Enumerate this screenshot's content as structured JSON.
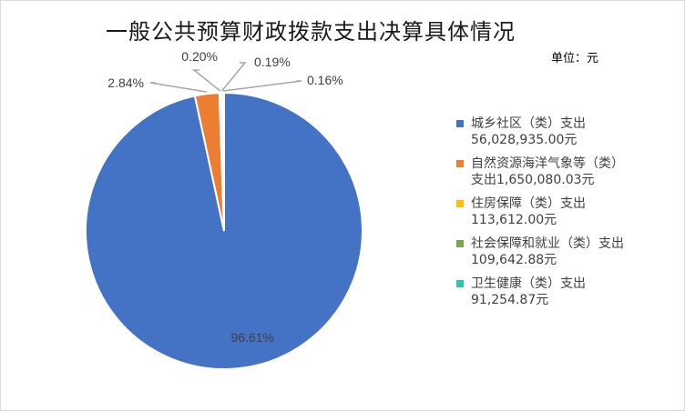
{
  "title": "一般公共预算财政拨款支出决算具体情况",
  "unit": "单位：元",
  "chart_data": {
    "type": "pie",
    "title": "一般公共预算财政拨款支出决算具体情况",
    "unit": "单位：元",
    "legend_position": "right",
    "slices": [
      {
        "name": "城乡社区（类）支出",
        "value": 56028935.0,
        "value_text": "56,028,935.00元",
        "percent_label": "96.61%",
        "color": "#4472C4"
      },
      {
        "name": "自然资源海洋气象等（类）支出",
        "value": 1650080.03,
        "value_text": "1,650,080.03元",
        "percent_label": "2.84%",
        "color": "#ED7D31"
      },
      {
        "name": "住房保障（类）支出",
        "value": 113612.0,
        "value_text": "113,612.00元",
        "percent_label": "0.20%",
        "color": "#FFC000"
      },
      {
        "name": "社会保障和就业（类）支出",
        "value": 109642.88,
        "value_text": "109,642.88元",
        "percent_label": "0.19%",
        "color": "#70AD47"
      },
      {
        "name": "卫生健康（类）支出",
        "value": 91254.87,
        "value_text": "91,254.87元",
        "percent_label": "0.16%",
        "color": "#2EC4B6"
      }
    ],
    "legend": [
      {
        "lines": [
          "城乡社区（类）支出",
          "56,028,935.00元"
        ]
      },
      {
        "lines": [
          "自然资源海洋气象等（类）",
          "支出1,650,080.03元"
        ]
      },
      {
        "lines": [
          "住房保障（类）支出",
          "113,612.00元"
        ]
      },
      {
        "lines": [
          "社会保障和就业（类）支出",
          "109,642.88元"
        ]
      },
      {
        "lines": [
          "卫生健康（类）支出",
          "91,254.87元"
        ]
      }
    ]
  }
}
